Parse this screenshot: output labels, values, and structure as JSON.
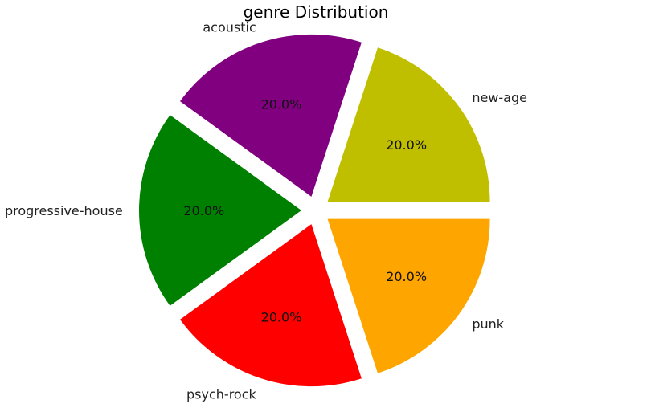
{
  "chart_data": {
    "type": "pie",
    "title": "genre Distribution",
    "categories": [
      "new-age",
      "acoustic",
      "progressive-house",
      "psych-rock",
      "punk"
    ],
    "values": [
      20.0,
      20.0,
      20.0,
      20.0,
      20.0
    ],
    "value_labels": [
      "20.0%",
      "20.0%",
      "20.0%",
      "20.0%",
      "20.0%"
    ],
    "colors": [
      "#bfbf00",
      "#800080",
      "#008000",
      "#ff0000",
      "#ffa500"
    ],
    "start_angle_deg": 0,
    "direction": "counterclockwise",
    "exploded": true
  }
}
